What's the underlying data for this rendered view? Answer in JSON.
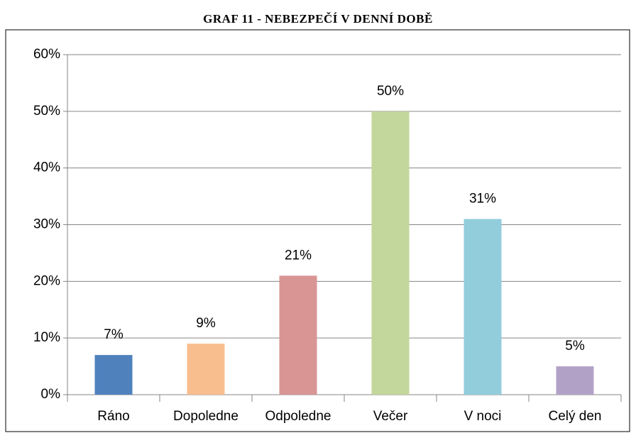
{
  "chart_data": {
    "type": "bar",
    "title": "GRAF 11 - NEBEZPEČÍ V DENNÍ DOBĚ",
    "categories": [
      "Ráno",
      "Dopoledne",
      "Odpoledne",
      "Večer",
      "V noci",
      "Celý den"
    ],
    "values": [
      7,
      9,
      21,
      50,
      31,
      5
    ],
    "value_labels": [
      "7%",
      "9%",
      "21%",
      "50%",
      "31%",
      "5%"
    ],
    "colors": [
      "#4f81bd",
      "#f9be8e",
      "#d99594",
      "#c3d69b",
      "#92cddc",
      "#b2a1c7"
    ],
    "ylim": [
      0,
      60
    ],
    "yticks": [
      {
        "value": 0,
        "label": "0%"
      },
      {
        "value": 10,
        "label": "10%"
      },
      {
        "value": 20,
        "label": "20%"
      },
      {
        "value": 30,
        "label": "30%"
      },
      {
        "value": 40,
        "label": "40%"
      },
      {
        "value": 50,
        "label": "50%"
      },
      {
        "value": 60,
        "label": "60%"
      }
    ],
    "grid": true
  }
}
